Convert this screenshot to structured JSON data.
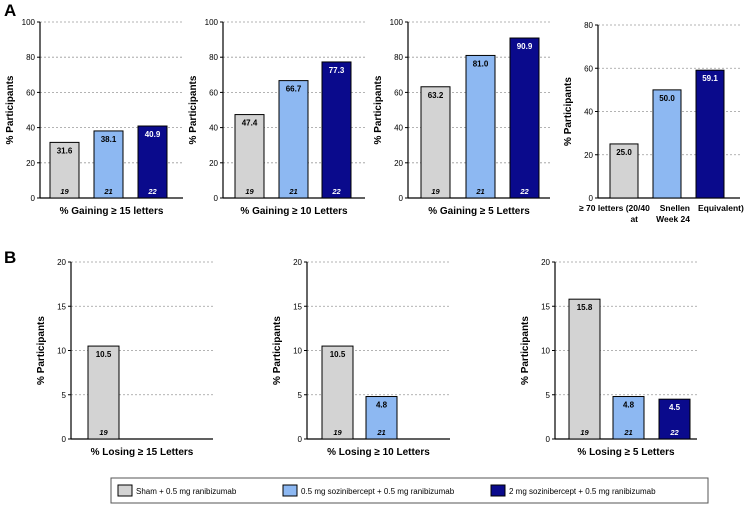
{
  "panels": {
    "a": "A",
    "b": "B"
  },
  "legend": [
    {
      "label": "Sham + 0.5 mg ranibizumab",
      "color": "#d3d3d3"
    },
    {
      "label": "0.5 mg sozinibercept + 0.5 mg ranibizumab",
      "color": "#8db8f2"
    },
    {
      "label": "2 mg sozinibercept + 0.5 mg ranibizumab",
      "color": "#0a0a8c"
    }
  ],
  "chart_data": [
    {
      "panel": "A",
      "type": "bar",
      "title": "",
      "xlabel": "% Gaining ≥ 15 letters",
      "ylabel": "% Participants",
      "ylim": [
        0,
        100
      ],
      "yticks": [
        0,
        20,
        40,
        60,
        80,
        100
      ],
      "series": [
        {
          "name": "Sham + 0.5 mg ranibizumab",
          "value": 31.6,
          "label": "31.6",
          "n": "19"
        },
        {
          "name": "0.5 mg sozinibercept + 0.5 mg ranibizumab",
          "value": 38.1,
          "label": "38.1",
          "n": "21"
        },
        {
          "name": "2 mg sozinibercept + 0.5 mg ranibizumab",
          "value": 40.9,
          "label": "40.9",
          "n": "22"
        }
      ]
    },
    {
      "panel": "A",
      "type": "bar",
      "title": "",
      "xlabel": "% Gaining ≥ 10 Letters",
      "ylabel": "% Participants",
      "ylim": [
        0,
        100
      ],
      "yticks": [
        0,
        20,
        40,
        60,
        80,
        100
      ],
      "series": [
        {
          "name": "Sham + 0.5 mg ranibizumab",
          "value": 47.4,
          "label": "47.4",
          "n": "19"
        },
        {
          "name": "0.5 mg sozinibercept + 0.5 mg ranibizumab",
          "value": 66.7,
          "label": "66.7",
          "n": "21"
        },
        {
          "name": "2 mg sozinibercept + 0.5 mg ranibizumab",
          "value": 77.3,
          "label": "77.3",
          "n": "22"
        }
      ]
    },
    {
      "panel": "A",
      "type": "bar",
      "title": "",
      "xlabel": "% Gaining ≥ 5 Letters",
      "ylabel": "% Participants",
      "ylim": [
        0,
        100
      ],
      "yticks": [
        0,
        20,
        40,
        60,
        80,
        100
      ],
      "series": [
        {
          "name": "Sham + 0.5 mg ranibizumab",
          "value": 63.2,
          "label": "63.2",
          "n": "19"
        },
        {
          "name": "0.5 mg sozinibercept + 0.5 mg ranibizumab",
          "value": 81.0,
          "label": "81.0",
          "n": "21"
        },
        {
          "name": "2 mg sozinibercept + 0.5 mg ranibizumab",
          "value": 90.9,
          "label": "90.9",
          "n": "22"
        }
      ]
    },
    {
      "panel": "A",
      "type": "bar",
      "title": "",
      "xlabel": "≥ 70 letters (20/40 Snellen Equivalent)",
      "xlabel_line2": "at Week 24",
      "xlabel_parts": [
        "≥ 70 letters (20/40",
        "Snellen",
        "Equivalent)",
        "at",
        "Week 24"
      ],
      "ylabel": "% Participants",
      "ylim": [
        0,
        80
      ],
      "yticks": [
        0,
        20,
        40,
        60,
        80
      ],
      "series": [
        {
          "name": "Sham + 0.5 mg ranibizumab",
          "value": 25.0,
          "label": "25.0",
          "n": ""
        },
        {
          "name": "0.5 mg sozinibercept + 0.5 mg ranibizumab",
          "value": 50.0,
          "label": "50.0",
          "n": ""
        },
        {
          "name": "2 mg sozinibercept + 0.5 mg ranibizumab",
          "value": 59.1,
          "label": "59.1",
          "n": ""
        }
      ]
    },
    {
      "panel": "B",
      "type": "bar",
      "title": "",
      "xlabel": "% Losing ≥ 15 Letters",
      "ylabel": "% Participants",
      "ylim": [
        0,
        20
      ],
      "yticks": [
        0,
        5,
        10,
        15,
        20
      ],
      "series": [
        {
          "name": "Sham + 0.5 mg ranibizumab",
          "value": 10.5,
          "label": "10.5",
          "n": "19"
        }
      ]
    },
    {
      "panel": "B",
      "type": "bar",
      "title": "",
      "xlabel": "% Losing ≥ 10 Letters",
      "ylabel": "% Participants",
      "ylim": [
        0,
        20
      ],
      "yticks": [
        0,
        5,
        10,
        15,
        20
      ],
      "series": [
        {
          "name": "Sham + 0.5 mg ranibizumab",
          "value": 10.5,
          "label": "10.5",
          "n": "19"
        },
        {
          "name": "0.5 mg sozinibercept + 0.5 mg ranibizumab",
          "value": 4.8,
          "label": "4.8",
          "n": "21"
        }
      ]
    },
    {
      "panel": "B",
      "type": "bar",
      "title": "",
      "xlabel": "% Losing ≥ 5 Letters",
      "ylabel": "% Participants",
      "ylim": [
        0,
        20
      ],
      "yticks": [
        0,
        5,
        10,
        15,
        20
      ],
      "series": [
        {
          "name": "Sham + 0.5 mg ranibizumab",
          "value": 15.8,
          "label": "15.8",
          "n": "19"
        },
        {
          "name": "0.5 mg sozinibercept + 0.5 mg ranibizumab",
          "value": 4.8,
          "label": "4.8",
          "n": "21"
        },
        {
          "name": "2 mg sozinibercept + 0.5 mg ranibizumab",
          "value": 4.5,
          "label": "4.5",
          "n": "22"
        }
      ]
    }
  ]
}
